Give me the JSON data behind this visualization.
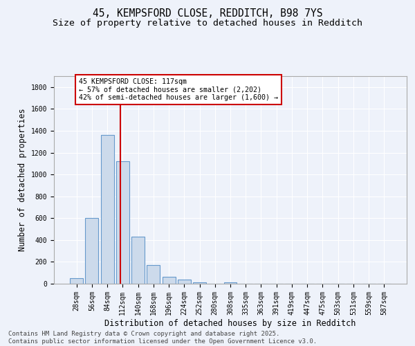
{
  "title_line1": "45, KEMPSFORD CLOSE, REDDITCH, B98 7YS",
  "title_line2": "Size of property relative to detached houses in Redditch",
  "xlabel": "Distribution of detached houses by size in Redditch",
  "ylabel": "Number of detached properties",
  "bar_color": "#ccdaeb",
  "bar_edge_color": "#6699cc",
  "categories": [
    "28sqm",
    "56sqm",
    "84sqm",
    "112sqm",
    "140sqm",
    "168sqm",
    "196sqm",
    "224sqm",
    "252sqm",
    "280sqm",
    "308sqm",
    "335sqm",
    "363sqm",
    "391sqm",
    "419sqm",
    "447sqm",
    "475sqm",
    "503sqm",
    "531sqm",
    "559sqm",
    "587sqm"
  ],
  "values": [
    50,
    600,
    1360,
    1120,
    430,
    170,
    65,
    35,
    10,
    0,
    15,
    0,
    0,
    0,
    0,
    0,
    0,
    0,
    0,
    0,
    0
  ],
  "ylim": [
    0,
    1900
  ],
  "yticks": [
    0,
    200,
    400,
    600,
    800,
    1000,
    1200,
    1400,
    1600,
    1800
  ],
  "vline_x": 2.87,
  "annotation_text": "45 KEMPSFORD CLOSE: 117sqm\n← 57% of detached houses are smaller (2,202)\n42% of semi-detached houses are larger (1,600) →",
  "annotation_box_color": "#ffffff",
  "annotation_box_edge": "#cc0000",
  "vline_color": "#cc0000",
  "background_color": "#eef2fa",
  "grid_color": "#ffffff",
  "footer_line1": "Contains HM Land Registry data © Crown copyright and database right 2025.",
  "footer_line2": "Contains public sector information licensed under the Open Government Licence v3.0.",
  "title_fontsize": 10.5,
  "subtitle_fontsize": 9.5,
  "label_fontsize": 8.5,
  "tick_fontsize": 7,
  "footer_fontsize": 6.5
}
